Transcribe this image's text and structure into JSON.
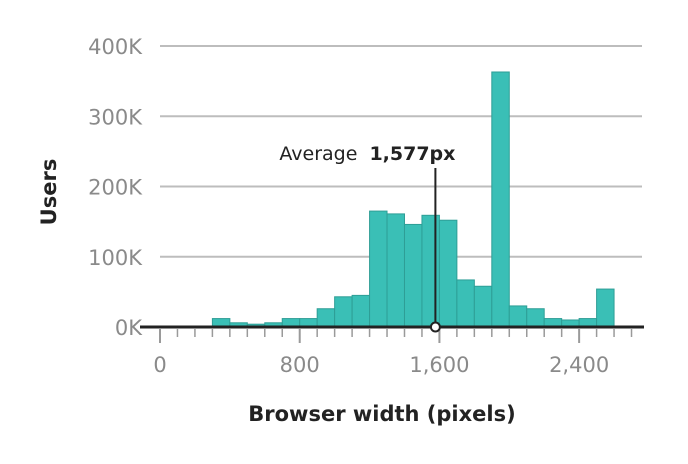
{
  "chart_data": {
    "type": "bar",
    "title": "",
    "xlabel": "Browser width (pixels)",
    "ylabel": "Users",
    "xlim": [
      0,
      2760
    ],
    "ylim": [
      0,
      400000
    ],
    "grid": true,
    "bar_color": "#3ABFB6",
    "bar_edge_color": "#2E9E96",
    "grid_color": "#BDBDBD",
    "axis_color": "#222222",
    "x_ticks": [
      {
        "value": 0,
        "label": "0"
      },
      {
        "value": 800,
        "label": "800"
      },
      {
        "value": 1600,
        "label": "1,600"
      },
      {
        "value": 2400,
        "label": "2,400"
      }
    ],
    "y_ticks": [
      {
        "value": 0,
        "label": "0K"
      },
      {
        "value": 100000,
        "label": "100K"
      },
      {
        "value": 200000,
        "label": "200K"
      },
      {
        "value": 300000,
        "label": "300K"
      },
      {
        "value": 400000,
        "label": "400K"
      }
    ],
    "bins": [
      {
        "x0": 300,
        "x1": 400,
        "value": 12000
      },
      {
        "x0": 400,
        "x1": 500,
        "value": 6000
      },
      {
        "x0": 500,
        "x1": 600,
        "value": 4000
      },
      {
        "x0": 600,
        "x1": 700,
        "value": 6000
      },
      {
        "x0": 700,
        "x1": 800,
        "value": 12000
      },
      {
        "x0": 800,
        "x1": 900,
        "value": 12000
      },
      {
        "x0": 900,
        "x1": 1000,
        "value": 26000
      },
      {
        "x0": 1000,
        "x1": 1100,
        "value": 43000
      },
      {
        "x0": 1100,
        "x1": 1200,
        "value": 45000
      },
      {
        "x0": 1200,
        "x1": 1300,
        "value": 165000
      },
      {
        "x0": 1300,
        "x1": 1400,
        "value": 161000
      },
      {
        "x0": 1400,
        "x1": 1500,
        "value": 146000
      },
      {
        "x0": 1500,
        "x1": 1600,
        "value": 159000
      },
      {
        "x0": 1600,
        "x1": 1700,
        "value": 152000
      },
      {
        "x0": 1700,
        "x1": 1800,
        "value": 67000
      },
      {
        "x0": 1800,
        "x1": 1900,
        "value": 58000
      },
      {
        "x0": 1900,
        "x1": 2000,
        "value": 363000
      },
      {
        "x0": 2000,
        "x1": 2100,
        "value": 30000
      },
      {
        "x0": 2100,
        "x1": 2200,
        "value": 26000
      },
      {
        "x0": 2200,
        "x1": 2300,
        "value": 12000
      },
      {
        "x0": 2300,
        "x1": 2400,
        "value": 10000
      },
      {
        "x0": 2400,
        "x1": 2500,
        "value": 12000
      },
      {
        "x0": 2500,
        "x1": 2600,
        "value": 54000
      }
    ],
    "annotation": {
      "label": "Average",
      "value_text": "1,577px",
      "x": 1577,
      "y": 0
    }
  }
}
